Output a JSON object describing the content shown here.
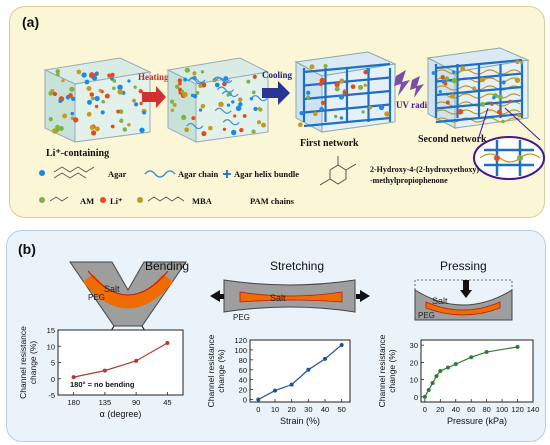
{
  "panel_a": {
    "label": "(a)",
    "steps": {
      "cube1_caption": "Li⁺-containing",
      "heating": "Heating",
      "cooling": "Cooling",
      "first_network": "First network",
      "uv": "UV radiation",
      "second_network": "Second network"
    },
    "legend": {
      "agar": "Agar",
      "agar_chain": "Agar chain",
      "agar_helix": "Agar helix bundle",
      "photoinitiator": "2-Hydroxy-4-(2-hydroxyethoxy)",
      "photoinitiator2": "-methylpropiophenone",
      "am": "AM",
      "li": "Li⁺",
      "mba": "MBA",
      "pam": "PAM chains"
    },
    "colors": {
      "li": "#e64a19",
      "agar": "#1e88e5",
      "am": "#7cb342",
      "network": "#1565c0",
      "pam": "#c49a1a",
      "heating": "#d32f2f",
      "cooling": "#283593"
    }
  },
  "panel_b": {
    "label": "(b)",
    "bending": {
      "title": "Bending",
      "salt": "Salt",
      "peg": "PEG",
      "alpha": "α"
    },
    "stretching": {
      "title": "Stretching",
      "salt": "Salt",
      "peg": "PEG"
    },
    "pressing": {
      "title": "Pressing",
      "salt": "Salt",
      "peg": "PEG"
    }
  },
  "chart_data": [
    {
      "type": "line",
      "title": "",
      "xlabel": "α (degree)",
      "ylabel": "Channel resistance change (%)",
      "categories": [
        "180",
        "135",
        "90",
        "45"
      ],
      "values": [
        0.5,
        2.5,
        5.5,
        11
      ],
      "ylim": [
        -5,
        15
      ],
      "yticks": [
        "-5",
        "0",
        "5",
        "10",
        "15"
      ],
      "annotation": "180° = no bending",
      "color": "#b03a2e"
    },
    {
      "type": "line",
      "title": "",
      "xlabel": "Strain (%)",
      "ylabel": "Channel resistance change (%)",
      "x": [
        0,
        10,
        20,
        30,
        40,
        50
      ],
      "values": [
        0,
        18,
        30,
        60,
        82,
        110
      ],
      "xlim": [
        -5,
        55
      ],
      "ylim": [
        -5,
        120
      ],
      "xticks": [
        "0",
        "10",
        "20",
        "30",
        "40",
        "50"
      ],
      "yticks": [
        "0",
        "20",
        "40",
        "60",
        "80",
        "100",
        "120"
      ],
      "color": "#1f4fa0"
    },
    {
      "type": "line",
      "title": "",
      "xlabel": "Pressure (kPa)",
      "ylabel": "Channel resistance change (%)",
      "x": [
        0,
        5,
        10,
        15,
        20,
        30,
        40,
        60,
        80,
        120
      ],
      "values": [
        0,
        4,
        8,
        12,
        15,
        17,
        19,
        23,
        26,
        29
      ],
      "xlim": [
        -5,
        140
      ],
      "ylim": [
        -3,
        33
      ],
      "xticks": [
        "0",
        "20",
        "40",
        "60",
        "80",
        "100",
        "120",
        "140"
      ],
      "yticks": [
        "0",
        "10",
        "20",
        "30"
      ],
      "color": "#2e7d32"
    }
  ]
}
